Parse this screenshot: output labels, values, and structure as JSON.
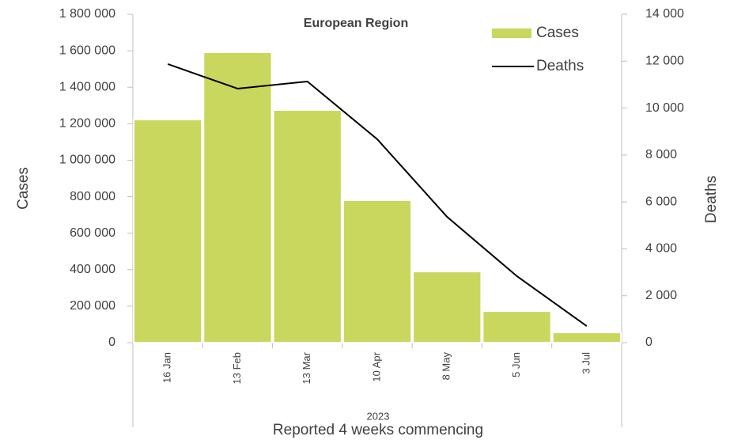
{
  "chart_data": {
    "type": "bar",
    "title": "European Region",
    "x_label_top": "2023",
    "x_label": "Reported 4 weeks commencing",
    "y_label": "Cases",
    "y2_label": "Deaths",
    "categories": [
      "16 Jan",
      "13 Feb",
      "13 Mar",
      "10 Apr",
      "8 May",
      "5 Jun",
      "3 Jul"
    ],
    "series": [
      {
        "name": "Cases",
        "type": "bar",
        "color": "#c9d75e",
        "values": [
          1223000,
          1592000,
          1275000,
          781000,
          390000,
          173000,
          56000
        ]
      },
      {
        "name": "Deaths",
        "type": "line",
        "axis": "y2",
        "color": "#000000",
        "values": [
          11875,
          10829,
          11133,
          8670,
          5364,
          2834,
          708
        ]
      }
    ],
    "ylim": [
      0,
      1800000
    ],
    "yticks": [
      0,
      {
        "value": 200000,
        "label": "200 000"
      },
      {
        "value": 400000,
        "label": "400 000"
      },
      {
        "value": 600000,
        "label": "600 000"
      },
      {
        "value": 800000,
        "label": "800 000"
      },
      {
        "value": 1000000,
        "label": "1 000 000"
      },
      {
        "value": 1200000,
        "label": "1 200 000"
      },
      {
        "value": 1400000,
        "label": "1 400 000"
      },
      {
        "value": 1600000,
        "label": "1 600 000"
      },
      {
        "value": 1800000,
        "label": "1 800 000"
      }
    ],
    "y2lim": [
      0,
      14000
    ],
    "y2ticks": [
      0,
      {
        "value": 2000,
        "label": "2 000"
      },
      {
        "value": 4000,
        "label": "4 000"
      },
      {
        "value": 6000,
        "label": "6 000"
      },
      {
        "value": 8000,
        "label": "8 000"
      },
      {
        "value": 10000,
        "label": "10 000"
      },
      {
        "value": 12000,
        "label": "12 000"
      },
      {
        "value": 14000,
        "label": "14 000"
      }
    ],
    "legend": "top-right",
    "grid": false
  }
}
